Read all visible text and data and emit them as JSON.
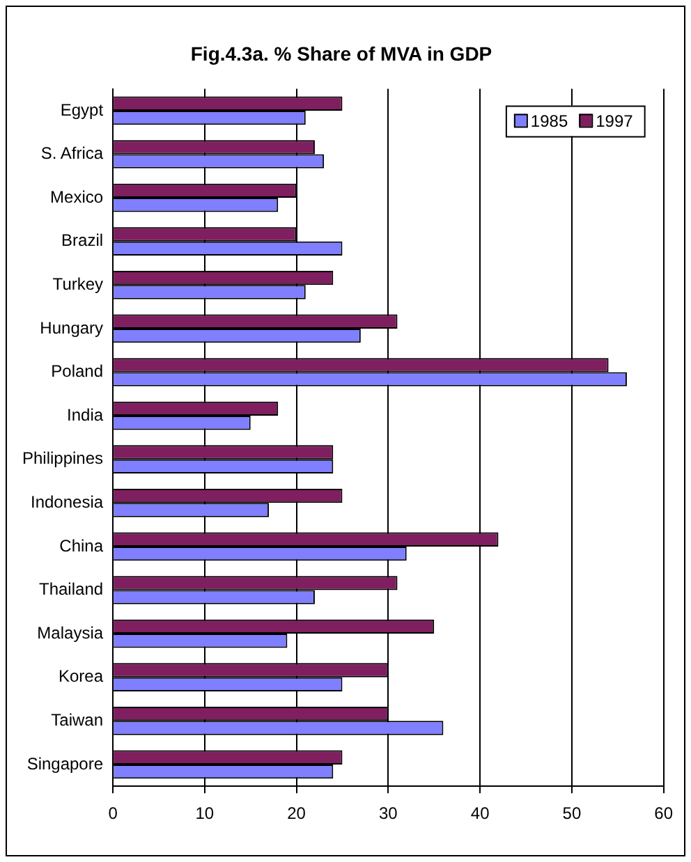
{
  "chart_data": {
    "type": "bar",
    "orientation": "horizontal",
    "title": "Fig.4.3a. % Share of MVA in GDP",
    "categories": [
      "Egypt",
      "S. Africa",
      "Mexico",
      "Brazil",
      "Turkey",
      "Hungary",
      "Poland",
      "India",
      "Philippines",
      "Indonesia",
      "China",
      "Thailand",
      "Malaysia",
      "Korea",
      "Taiwan",
      "Singapore"
    ],
    "series": [
      {
        "name": "1985",
        "color": "#7f7fff",
        "values": [
          21,
          23,
          18,
          25,
          21,
          27,
          56,
          15,
          24,
          17,
          32,
          22,
          19,
          25,
          36,
          24
        ]
      },
      {
        "name": "1997",
        "color": "#7f1f5f",
        "values": [
          25,
          22,
          20,
          20,
          24,
          31,
          54,
          18,
          24,
          25,
          42,
          31,
          35,
          30,
          30,
          25
        ]
      }
    ],
    "xlim": [
      0,
      60
    ],
    "xticks": [
      0,
      10,
      20,
      30,
      40,
      50,
      60
    ],
    "grid": "x",
    "legend": "top right"
  }
}
